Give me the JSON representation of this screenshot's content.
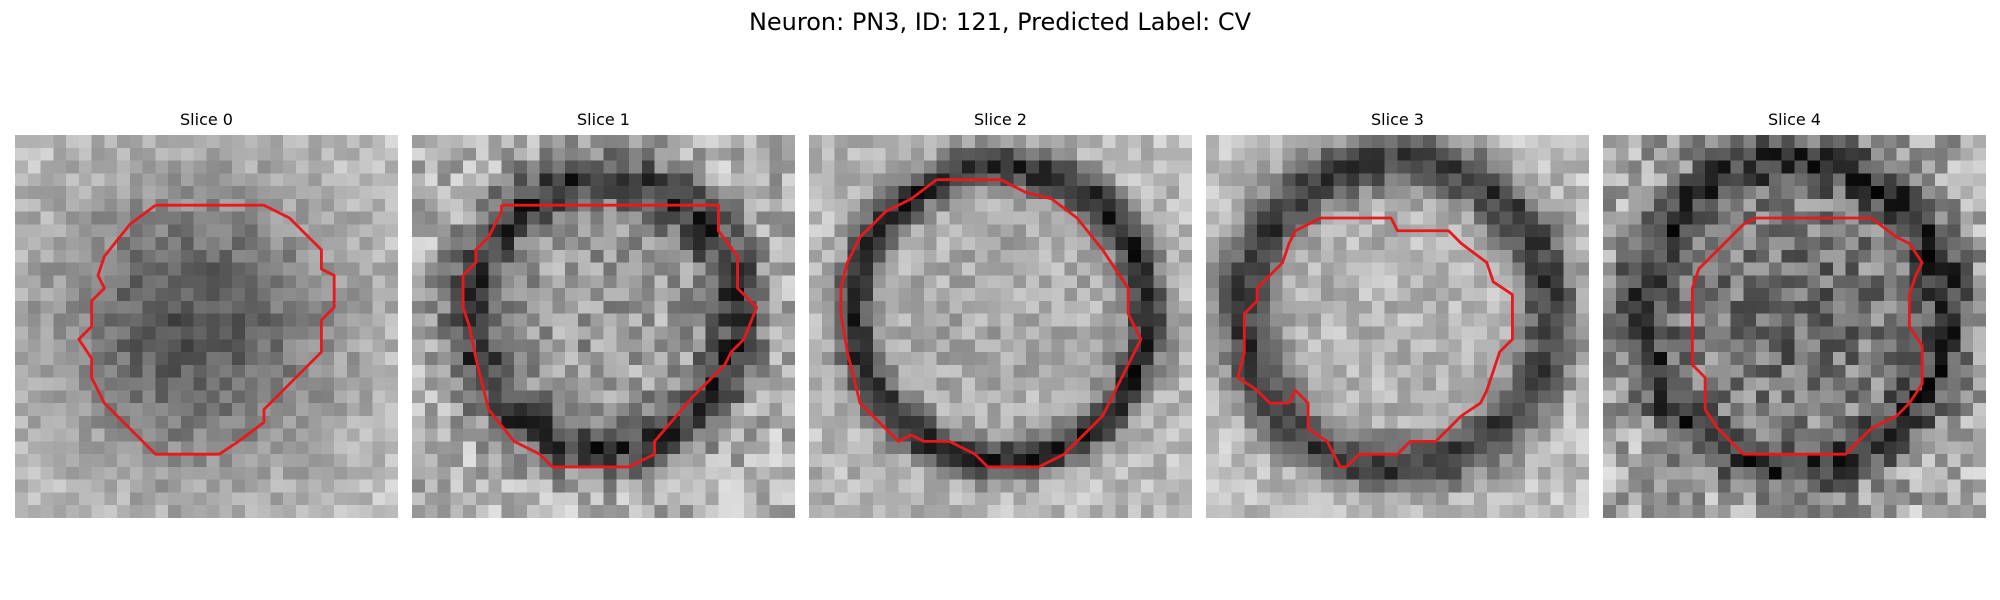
{
  "figure": {
    "title": "Neuron: PN3, ID: 121, Predicted Label: CV"
  },
  "panels": [
    {
      "title": "Slice 0"
    },
    {
      "title": "Slice 1"
    },
    {
      "title": "Slice 2"
    },
    {
      "title": "Slice 3"
    },
    {
      "title": "Slice 4"
    }
  ],
  "colors": {
    "contour": "#e8191c",
    "background": "#ffffff"
  }
}
